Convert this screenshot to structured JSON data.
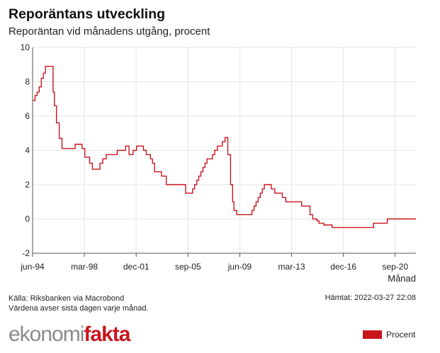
{
  "header": {
    "title": "Reporäntans utveckling",
    "subtitle": "Reporäntan vid månadens utgång, procent"
  },
  "footer": {
    "source": "Källa: Riksbanken via Macrobond",
    "note": "Värdena avser sista dagen varje månad.",
    "fetched": "Hämtat: 2022-03-27 22:08"
  },
  "logo": {
    "part1": "ekonomi",
    "part2": "fakta"
  },
  "legend": {
    "label": "Procent"
  },
  "colors": {
    "line": "#c8161d",
    "logo_red": "#c8161d",
    "logo_grey": "#8a8a8a",
    "grid": "#e6e6e6"
  },
  "chart_data": {
    "type": "line",
    "title": "Reporäntans utveckling",
    "subtitle": "Reporäntan vid månadens utgång, procent",
    "xlabel": "Månad",
    "ylabel": "",
    "xlim": [
      1994.42,
      2022.17
    ],
    "ylim": [
      -2,
      10
    ],
    "grid": true,
    "y_ticks": [
      10,
      8,
      6,
      4,
      2,
      0,
      -2
    ],
    "x_ticks": [
      {
        "label": "jun-94",
        "x": 1994.42
      },
      {
        "label": "mar-98",
        "x": 1998.17
      },
      {
        "label": "dec-01",
        "x": 2001.92
      },
      {
        "label": "sep-05",
        "x": 2005.67
      },
      {
        "label": "jun-09",
        "x": 2009.42
      },
      {
        "label": "mar-13",
        "x": 2013.17
      },
      {
        "label": "dec-16",
        "x": 2016.92
      },
      {
        "label": "sep-20",
        "x": 2020.67
      }
    ],
    "series": [
      {
        "name": "Procent",
        "x": [
          1994.42,
          1994.6,
          1994.75,
          1994.9,
          1995.05,
          1995.2,
          1995.35,
          1995.5,
          1995.62,
          1995.9,
          1996.0,
          1996.15,
          1996.35,
          1996.55,
          1996.75,
          1996.9,
          1997.05,
          1997.25,
          1997.5,
          1998.0,
          1998.2,
          1998.55,
          1998.75,
          1998.85,
          1998.95,
          1999.05,
          1999.15,
          1999.3,
          1999.5,
          1999.75,
          1999.9,
          2000.0,
          2000.15,
          2000.35,
          2000.55,
          2000.9,
          2001.15,
          2001.4,
          2001.55,
          2001.7,
          2001.95,
          2002.1,
          2002.3,
          2002.45,
          2002.65,
          2002.8,
          2002.95,
          2003.1,
          2003.25,
          2003.45,
          2003.75,
          2004.1,
          2004.35,
          2004.5,
          2005.5,
          2005.65,
          2006.0,
          2006.15,
          2006.3,
          2006.45,
          2006.6,
          2006.75,
          2006.9,
          2007.05,
          2007.25,
          2007.45,
          2007.6,
          2007.8,
          2008.0,
          2008.15,
          2008.35,
          2008.55,
          2008.68,
          2008.75,
          2008.8,
          2008.9,
          2009.0,
          2009.1,
          2009.2,
          2009.3,
          2009.5,
          2010.3,
          2010.45,
          2010.6,
          2010.75,
          2010.9,
          2011.05,
          2011.2,
          2011.35,
          2011.5,
          2011.7,
          2011.95,
          2012.1,
          2012.3,
          2012.5,
          2012.75,
          2012.95,
          2013.9,
          2014.1,
          2014.5,
          2014.7,
          2014.8,
          2015.0,
          2015.15,
          2015.5,
          2015.8,
          2016.1,
          2018.9,
          2019.1,
          2019.9,
          2020.1,
          2022.17
        ],
        "values": [
          6.9,
          7.2,
          7.4,
          7.7,
          8.2,
          8.5,
          8.9,
          8.9,
          8.9,
          7.4,
          6.6,
          5.6,
          4.7,
          4.1,
          4.1,
          4.1,
          4.1,
          4.1,
          4.35,
          4.1,
          3.6,
          3.25,
          2.9,
          2.9,
          2.9,
          2.9,
          2.9,
          3.25,
          3.5,
          3.75,
          3.75,
          3.75,
          3.75,
          3.75,
          4.0,
          4.0,
          4.25,
          3.75,
          3.75,
          4.0,
          4.25,
          4.25,
          4.25,
          4.0,
          3.75,
          3.75,
          3.5,
          3.25,
          2.75,
          2.75,
          2.5,
          2.0,
          2.0,
          2.0,
          1.5,
          1.5,
          1.75,
          2.0,
          2.25,
          2.5,
          2.75,
          3.0,
          3.25,
          3.5,
          3.5,
          3.75,
          4.0,
          4.25,
          4.25,
          4.5,
          4.75,
          3.75,
          3.75,
          2.0,
          2.0,
          1.0,
          0.5,
          0.5,
          0.25,
          0.25,
          0.25,
          0.5,
          0.75,
          1.0,
          1.25,
          1.5,
          1.75,
          2.0,
          2.0,
          2.0,
          1.75,
          1.5,
          1.5,
          1.5,
          1.25,
          1.0,
          1.0,
          0.75,
          0.75,
          0.25,
          0.0,
          0.0,
          -0.1,
          -0.25,
          -0.35,
          -0.35,
          -0.5,
          -0.5,
          -0.25,
          -0.25,
          0.0,
          0.0
        ]
      }
    ]
  }
}
